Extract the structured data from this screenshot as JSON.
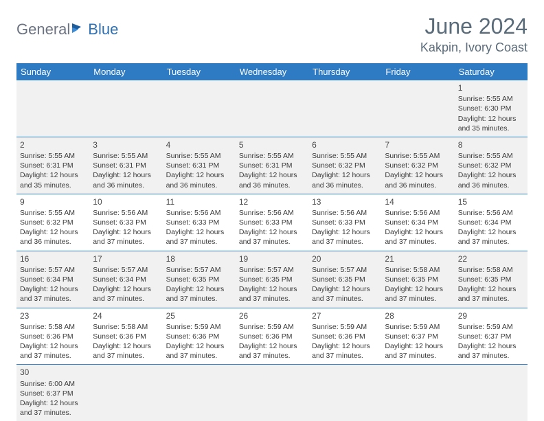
{
  "brand": {
    "grey": "General",
    "blue": "Blue"
  },
  "title": "June 2024",
  "location": "Kakpin, Ivory Coast",
  "colors": {
    "header_bg": "#2f7bc3",
    "header_text": "#ffffff",
    "title_text": "#5a6b7a",
    "logo_grey": "#6b7280",
    "logo_blue": "#2f71b3",
    "alt_row": "#f1f1f1",
    "cell_text": "#3a3a3a"
  },
  "day_names": [
    "Sunday",
    "Monday",
    "Tuesday",
    "Wednesday",
    "Thursday",
    "Friday",
    "Saturday"
  ],
  "weeks": [
    [
      null,
      null,
      null,
      null,
      null,
      null,
      {
        "n": "1",
        "r": "5:55 AM",
        "s": "6:30 PM",
        "d": "12 hours and 35 minutes."
      }
    ],
    [
      {
        "n": "2",
        "r": "5:55 AM",
        "s": "6:31 PM",
        "d": "12 hours and 35 minutes."
      },
      {
        "n": "3",
        "r": "5:55 AM",
        "s": "6:31 PM",
        "d": "12 hours and 36 minutes."
      },
      {
        "n": "4",
        "r": "5:55 AM",
        "s": "6:31 PM",
        "d": "12 hours and 36 minutes."
      },
      {
        "n": "5",
        "r": "5:55 AM",
        "s": "6:31 PM",
        "d": "12 hours and 36 minutes."
      },
      {
        "n": "6",
        "r": "5:55 AM",
        "s": "6:32 PM",
        "d": "12 hours and 36 minutes."
      },
      {
        "n": "7",
        "r": "5:55 AM",
        "s": "6:32 PM",
        "d": "12 hours and 36 minutes."
      },
      {
        "n": "8",
        "r": "5:55 AM",
        "s": "6:32 PM",
        "d": "12 hours and 36 minutes."
      }
    ],
    [
      {
        "n": "9",
        "r": "5:55 AM",
        "s": "6:32 PM",
        "d": "12 hours and 36 minutes."
      },
      {
        "n": "10",
        "r": "5:56 AM",
        "s": "6:33 PM",
        "d": "12 hours and 37 minutes."
      },
      {
        "n": "11",
        "r": "5:56 AM",
        "s": "6:33 PM",
        "d": "12 hours and 37 minutes."
      },
      {
        "n": "12",
        "r": "5:56 AM",
        "s": "6:33 PM",
        "d": "12 hours and 37 minutes."
      },
      {
        "n": "13",
        "r": "5:56 AM",
        "s": "6:33 PM",
        "d": "12 hours and 37 minutes."
      },
      {
        "n": "14",
        "r": "5:56 AM",
        "s": "6:34 PM",
        "d": "12 hours and 37 minutes."
      },
      {
        "n": "15",
        "r": "5:56 AM",
        "s": "6:34 PM",
        "d": "12 hours and 37 minutes."
      }
    ],
    [
      {
        "n": "16",
        "r": "5:57 AM",
        "s": "6:34 PM",
        "d": "12 hours and 37 minutes."
      },
      {
        "n": "17",
        "r": "5:57 AM",
        "s": "6:34 PM",
        "d": "12 hours and 37 minutes."
      },
      {
        "n": "18",
        "r": "5:57 AM",
        "s": "6:35 PM",
        "d": "12 hours and 37 minutes."
      },
      {
        "n": "19",
        "r": "5:57 AM",
        "s": "6:35 PM",
        "d": "12 hours and 37 minutes."
      },
      {
        "n": "20",
        "r": "5:57 AM",
        "s": "6:35 PM",
        "d": "12 hours and 37 minutes."
      },
      {
        "n": "21",
        "r": "5:58 AM",
        "s": "6:35 PM",
        "d": "12 hours and 37 minutes."
      },
      {
        "n": "22",
        "r": "5:58 AM",
        "s": "6:35 PM",
        "d": "12 hours and 37 minutes."
      }
    ],
    [
      {
        "n": "23",
        "r": "5:58 AM",
        "s": "6:36 PM",
        "d": "12 hours and 37 minutes."
      },
      {
        "n": "24",
        "r": "5:58 AM",
        "s": "6:36 PM",
        "d": "12 hours and 37 minutes."
      },
      {
        "n": "25",
        "r": "5:59 AM",
        "s": "6:36 PM",
        "d": "12 hours and 37 minutes."
      },
      {
        "n": "26",
        "r": "5:59 AM",
        "s": "6:36 PM",
        "d": "12 hours and 37 minutes."
      },
      {
        "n": "27",
        "r": "5:59 AM",
        "s": "6:36 PM",
        "d": "12 hours and 37 minutes."
      },
      {
        "n": "28",
        "r": "5:59 AM",
        "s": "6:37 PM",
        "d": "12 hours and 37 minutes."
      },
      {
        "n": "29",
        "r": "5:59 AM",
        "s": "6:37 PM",
        "d": "12 hours and 37 minutes."
      }
    ],
    [
      {
        "n": "30",
        "r": "6:00 AM",
        "s": "6:37 PM",
        "d": "12 hours and 37 minutes."
      },
      null,
      null,
      null,
      null,
      null,
      null
    ]
  ],
  "labels": {
    "sunrise": "Sunrise:",
    "sunset": "Sunset:",
    "daylight": "Daylight:"
  }
}
